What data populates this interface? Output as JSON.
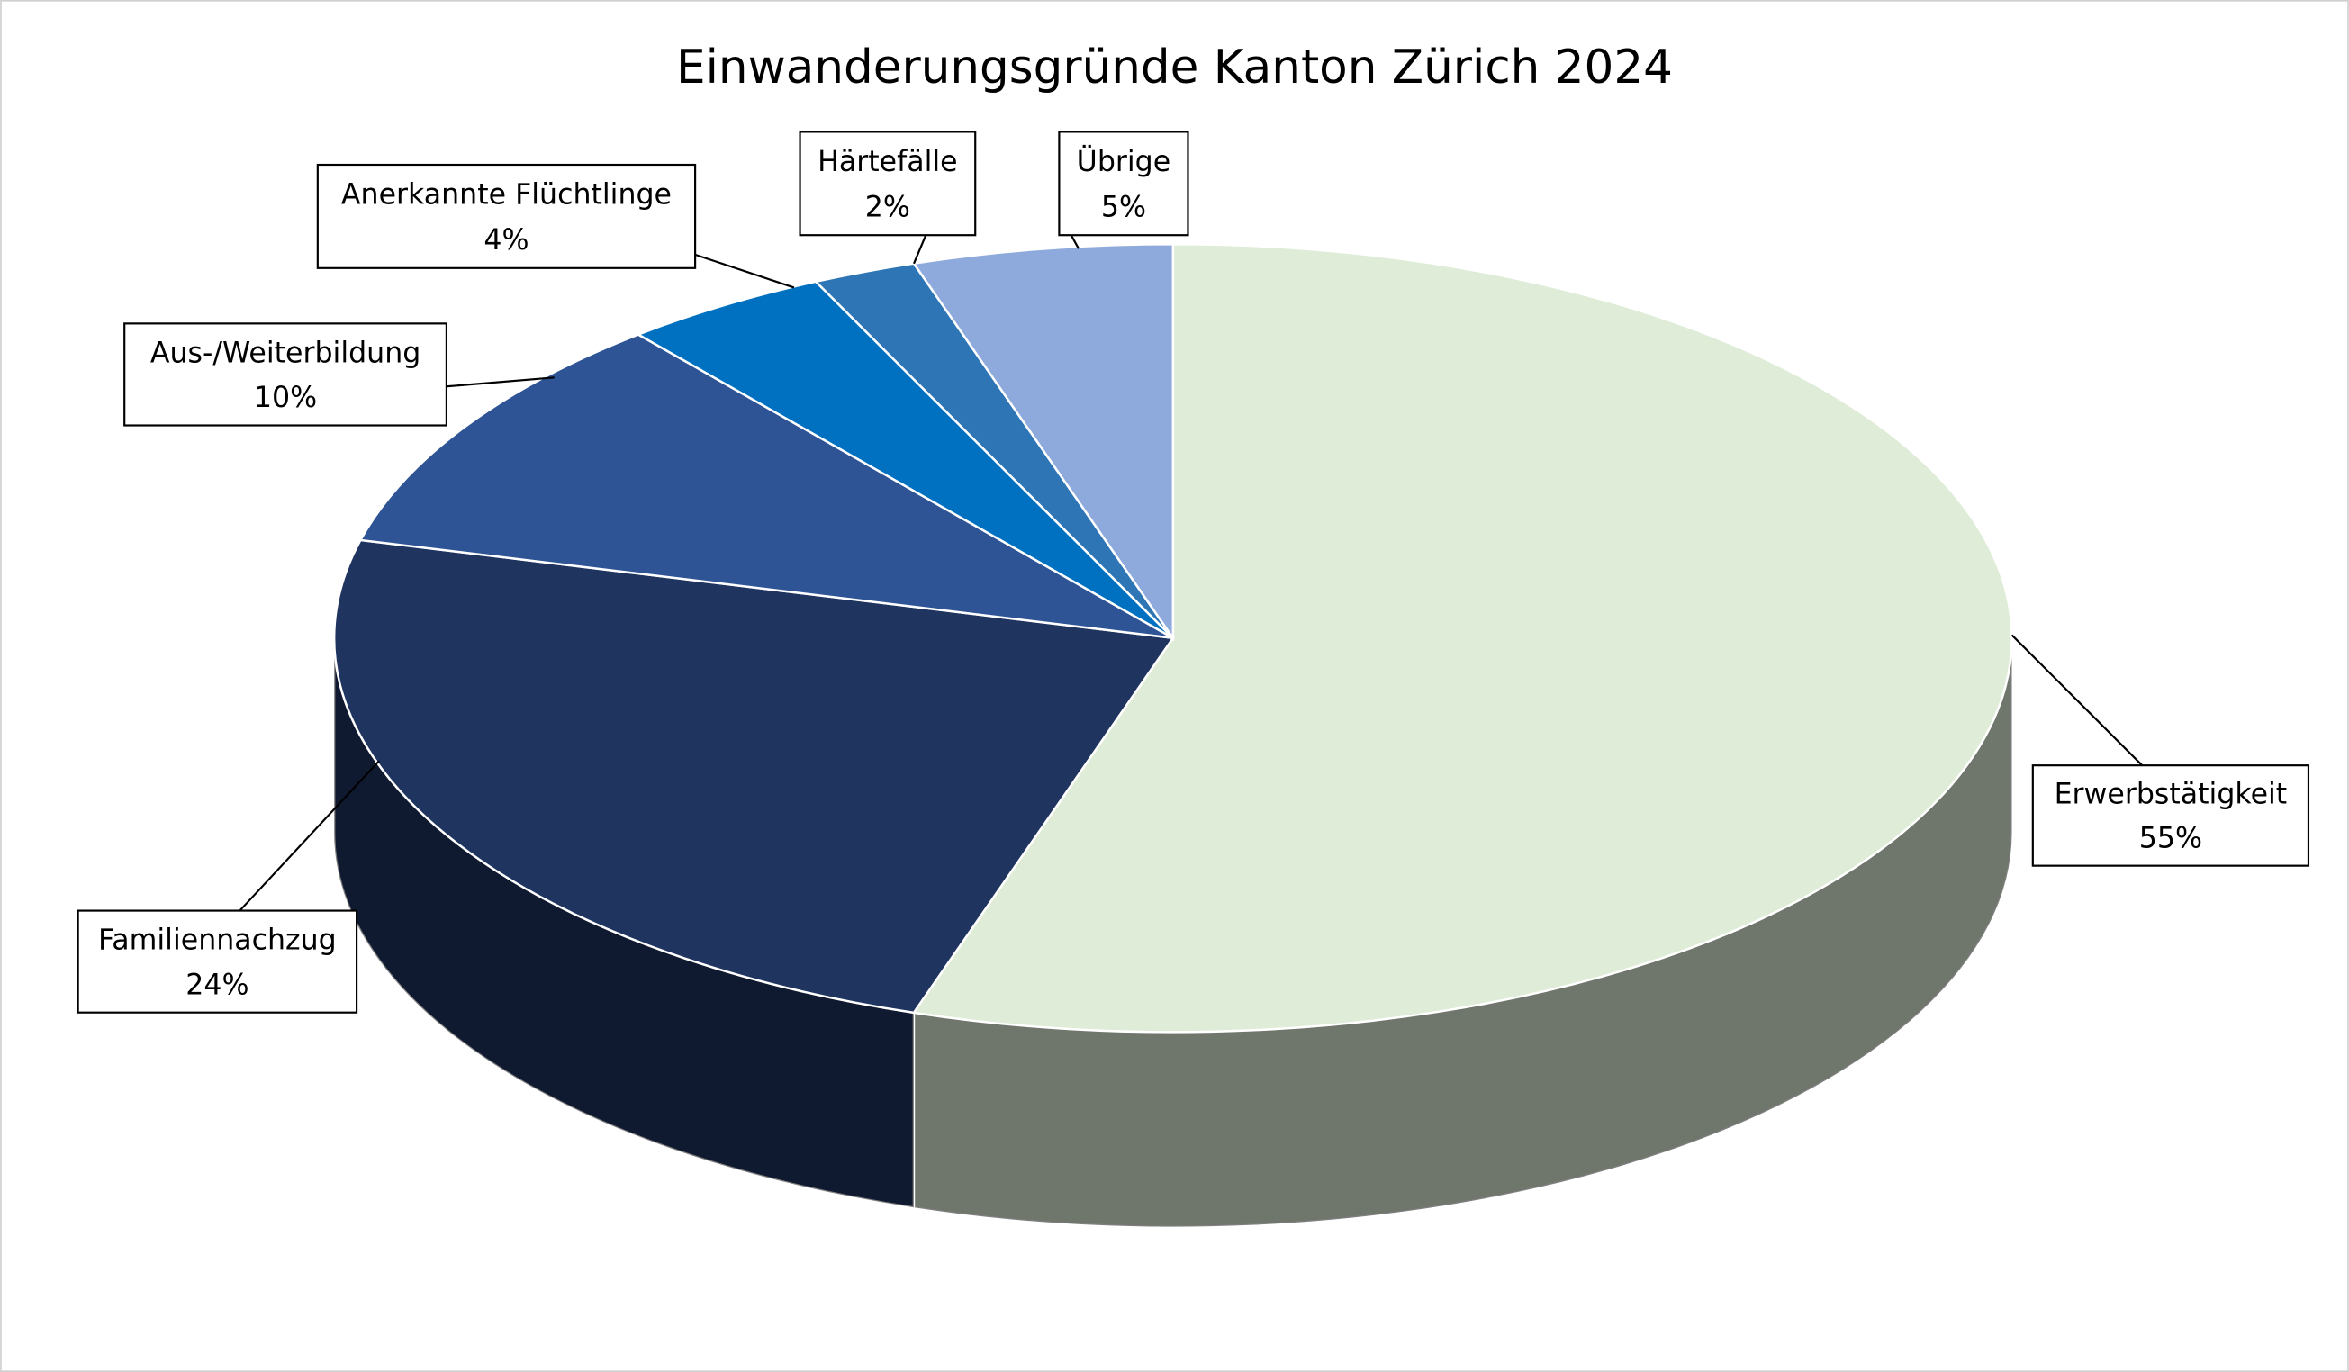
{
  "chart_data": {
    "type": "pie",
    "title": "Einwanderungsgründe Kanton Zürich 2024",
    "categories": [
      "Erwerbstätigkeit",
      "Familiennachzug",
      "Aus-/Weiterbildung",
      "Anerkannte Flüchtlinge",
      "Härtefälle",
      "Übrige"
    ],
    "values": [
      55,
      24,
      10,
      4,
      2,
      5
    ],
    "value_labels": [
      "55%",
      "24%",
      "10%",
      "4%",
      "2%",
      "5%"
    ],
    "colors": [
      "#dfecd8",
      "#1f3560",
      "#2e5496",
      "#0070c0",
      "#2e75b6",
      "#8ea9db"
    ]
  }
}
